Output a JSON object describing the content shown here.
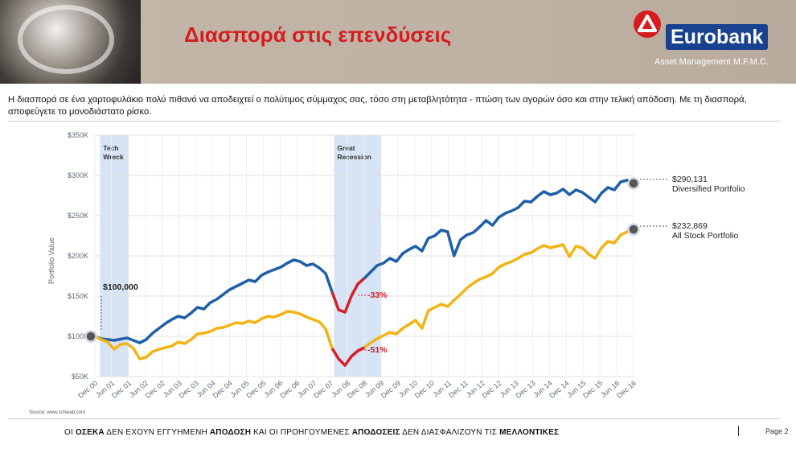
{
  "header": {
    "title": "Διασπορά στις επενδύσεις",
    "logo_name": "Eurobank",
    "logo_sub": "Asset Management M.F.M.C.",
    "accent_color": "#d51c1f",
    "brand_blue": "#18428f"
  },
  "intro_text": "Η διασπορά σε ένα χαρτοφυλάκιο πολύ πιθανό να αποδειχτεί  ο πολύτιμος σύμμαχος σας, τόσο στη μεταβλητότητα - πτώση των αγορών όσο και στην τελική απόδοση.  Με τη διασπορά, αποφεύγετε το μονοδιάστατο ρίσκο.",
  "source": "Source: www.schwab.com",
  "footer": {
    "p1": "ΟΙ ",
    "b1": "ΟΣΕΚΑ",
    "p2": " ΔΕΝ ΕΧΟΥΝ ΕΓΓΥΗΜΕΝΗ ",
    "b2": "ΑΠΟΔΟΣΗ",
    "p3": " ΚΑΙ ΟΙ ΠΡΟΗΓΟΥΜΕΝΕΣ ",
    "b3": "ΑΠΟΔΟΣΕΙΣ",
    "p4": " ΔΕΝ ΔΙΑΣΦΑΛΙΖΟΥΝ ΤΙΣ ",
    "b4": "ΜΕΛΛΟΝΤΙΚΕΣ"
  },
  "page_label": "Page 2",
  "chart_data": {
    "type": "line",
    "title": "",
    "xlabel": "",
    "ylabel": "Portfolio Value",
    "ylim": [
      50000,
      350000
    ],
    "yticks": [
      50000,
      100000,
      150000,
      200000,
      250000,
      300000,
      350000
    ],
    "ytick_labels": [
      "$50K",
      "$100K",
      "$150K",
      "$200K",
      "$250K",
      "$300K",
      "$350K"
    ],
    "xtick_labels": [
      "Dec 00",
      "Jun 01",
      "Dec 01",
      "Jun 02",
      "Dec 02",
      "Jun 03",
      "Dec 03",
      "Jun 04",
      "Dec 04",
      "Jun 05",
      "Dec 05",
      "Jun 06",
      "Dec 06",
      "Jun 07",
      "Dec 07",
      "Jun 08",
      "Dec 08",
      "Jun 09",
      "Dec 09",
      "Jun 10",
      "Dec 10",
      "Jun 11",
      "Dec 11",
      "Jun 12",
      "Dec 12",
      "Jun 13",
      "Dec 13",
      "Jun 14",
      "Dec 14",
      "Jun 15",
      "Dec 15",
      "Jun 16",
      "Dec 16"
    ],
    "grid": true,
    "shaded_periods": [
      {
        "label": "Tech\nWreck",
        "start": 0.3,
        "end": 2.0
      },
      {
        "label": "Great\nRecession",
        "start": 14.2,
        "end": 17.0
      }
    ],
    "series": [
      {
        "name": "Diversified Portfolio",
        "color": "#1f5fa8",
        "drawdown_color": "#d42027",
        "drawdown_range": [
          14.2,
          16.0
        ],
        "values": [
          100000,
          97000,
          96000,
          95000,
          96500,
          98000,
          95000,
          92000,
          96000,
          104000,
          110000,
          116000,
          121000,
          125000,
          123000,
          129000,
          136000,
          134000,
          142000,
          146000,
          152000,
          158000,
          162000,
          166000,
          170000,
          168000,
          176000,
          180000,
          183000,
          186000,
          191000,
          195000,
          193000,
          188000,
          190000,
          185000,
          178000,
          155000,
          133000,
          130000,
          150000,
          165000,
          172000,
          180000,
          188000,
          191000,
          197000,
          193000,
          203000,
          208000,
          212000,
          206000,
          222000,
          225000,
          232000,
          230000,
          200000,
          220000,
          226000,
          229000,
          236000,
          244000,
          238000,
          248000,
          253000,
          256000,
          260000,
          268000,
          267000,
          274000,
          280000,
          276000,
          278000,
          283000,
          276000,
          282000,
          279000,
          273000,
          267000,
          278000,
          285000,
          282000,
          292000,
          294000,
          290131
        ]
      },
      {
        "name": "All Stock Portfolio",
        "color": "#f2b414",
        "drawdown_color": "#d42027",
        "drawdown_range": [
          14.2,
          16.0
        ],
        "values": [
          100000,
          96000,
          93000,
          84000,
          90000,
          91000,
          85000,
          72000,
          74000,
          81000,
          84000,
          86000,
          88000,
          93000,
          91000,
          96000,
          103000,
          104000,
          106000,
          110000,
          111000,
          114000,
          117000,
          116000,
          119000,
          117000,
          122000,
          125000,
          124000,
          127000,
          131000,
          130000,
          128000,
          124000,
          121000,
          118000,
          109000,
          85000,
          72000,
          64000,
          75000,
          82000,
          86000,
          92000,
          97000,
          101000,
          105000,
          103000,
          110000,
          115000,
          120000,
          110000,
          132000,
          136000,
          140000,
          137000,
          145000,
          152000,
          160000,
          166000,
          171000,
          174000,
          178000,
          186000,
          190000,
          193000,
          197000,
          202000,
          204000,
          209000,
          213000,
          210000,
          212000,
          214000,
          199000,
          212000,
          210000,
          202000,
          197000,
          210000,
          218000,
          216000,
          226000,
          230000,
          232869
        ]
      }
    ],
    "annotations": [
      {
        "text": "$100,000",
        "x": 0.0,
        "y": 100000
      },
      {
        "text": "-33%",
        "x": 16.0,
        "y": 148000
      },
      {
        "text": "-51%",
        "x": 16.0,
        "y": 80000
      }
    ],
    "end_labels": [
      {
        "value": "$290,131",
        "name": "Diversified Portfolio",
        "y": 295000
      },
      {
        "value": "$232,869",
        "name": "All Stock Portfolio",
        "y": 237000
      }
    ]
  }
}
